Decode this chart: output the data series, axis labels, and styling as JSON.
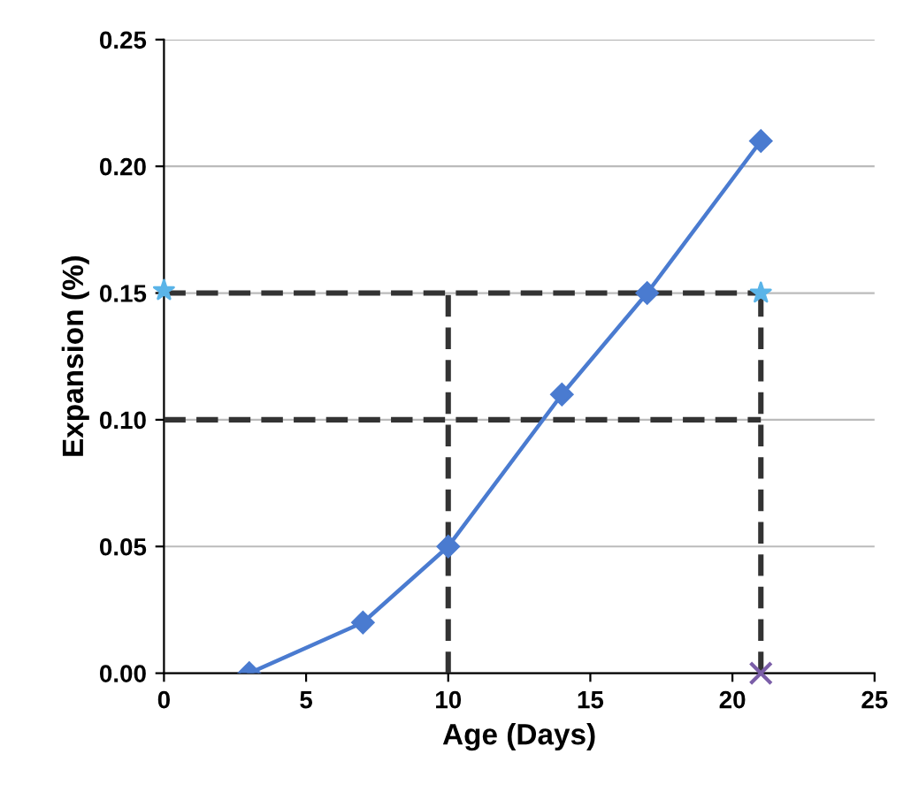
{
  "chart_data": {
    "type": "line",
    "xlabel": "Age (Days)",
    "ylabel": "Expansion (%)",
    "xlim": [
      0,
      25
    ],
    "xticks": [
      0,
      5,
      10,
      15,
      20,
      25
    ],
    "ylim": [
      0,
      0.25
    ],
    "yticks": [
      {
        "value": 0,
        "label": "0.00"
      },
      {
        "value": 0.05,
        "label": "0.05"
      },
      {
        "value": 0.1,
        "label": "0.10"
      },
      {
        "value": 0.15,
        "label": "0.15"
      },
      {
        "value": 0.2,
        "label": "0.20"
      },
      {
        "value": 0.25,
        "label": "0.25"
      }
    ],
    "grid": "y",
    "legend": false,
    "series": [
      {
        "x": [
          0,
          21
        ],
        "values": [
          0.15,
          0.15
        ],
        "color": "#333333",
        "line_style": "dashed",
        "marker": "none"
      },
      {
        "x": [
          0,
          21
        ],
        "values": [
          0.1,
          0.1
        ],
        "color": "#333333",
        "line_style": "dashed",
        "marker": "none"
      },
      {
        "x": [
          10,
          10
        ],
        "values": [
          0,
          0.15
        ],
        "color": "#333333",
        "line_style": "dashed",
        "marker": "none"
      },
      {
        "x": [
          21,
          21
        ],
        "values": [
          0,
          0.15
        ],
        "color": "#333333",
        "line_style": "dashed",
        "marker": "none"
      },
      {
        "x": [
          3,
          7,
          10,
          14,
          17,
          21
        ],
        "values": [
          0,
          0.02,
          0.05,
          0.11,
          0.15,
          0.21
        ],
        "color": "#4a7bd0",
        "line_style": "solid",
        "marker": "diamond"
      },
      {
        "type": "scatter",
        "x": [
          0,
          21
        ],
        "values": [
          0.151,
          0.15
        ],
        "color": "#5ab4e8",
        "marker": "star"
      },
      {
        "type": "scatter",
        "x": [
          21
        ],
        "values": [
          0
        ],
        "color": "#7b5ea8",
        "marker": "cross"
      }
    ]
  }
}
